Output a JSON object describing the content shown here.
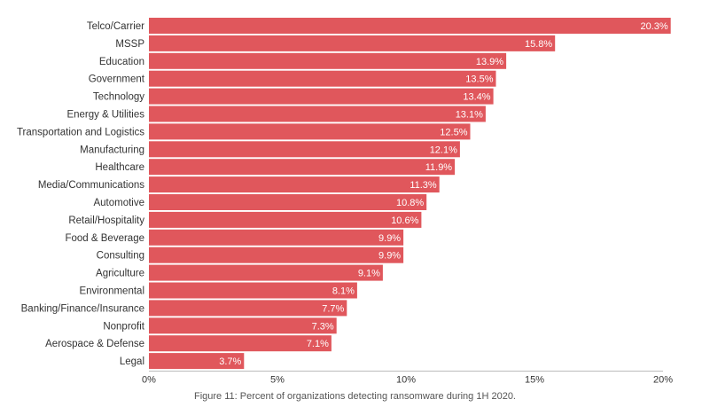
{
  "chart_data": {
    "type": "bar",
    "orientation": "horizontal",
    "categories": [
      "Telco/Carrier",
      "MSSP",
      "Education",
      "Government",
      "Technology",
      "Energy & Utilities",
      "Transportation and Logistics",
      "Manufacturing",
      "Healthcare",
      "Media/Communications",
      "Automotive",
      "Retail/Hospitality",
      "Food & Beverage",
      "Consulting",
      "Agriculture",
      "Environmental",
      "Banking/Finance/Insurance",
      "Nonprofit",
      "Aerospace & Defense",
      "Legal"
    ],
    "values": [
      20.3,
      15.8,
      13.9,
      13.5,
      13.4,
      13.1,
      12.5,
      12.1,
      11.9,
      11.3,
      10.8,
      10.6,
      9.9,
      9.9,
      9.1,
      8.1,
      7.7,
      7.3,
      7.1,
      3.7
    ],
    "data_labels": [
      "20.3%",
      "15.8%",
      "13.9%",
      "13.5%",
      "13.4%",
      "13.1%",
      "12.5%",
      "12.1%",
      "11.9%",
      "11.3%",
      "10.8%",
      "10.6%",
      "9.9%",
      "9.9%",
      "9.1%",
      "8.1%",
      "7.7%",
      "7.3%",
      "7.1%",
      "3.7%"
    ],
    "xlim": [
      0,
      20
    ],
    "x_ticks": [
      0,
      5,
      10,
      15,
      20
    ],
    "x_tick_labels": [
      "0%",
      "5%",
      "10%",
      "15%",
      "20%"
    ],
    "bar_color": "#e0575c",
    "grid": false,
    "legend": "none"
  },
  "caption": "Figure 11: Percent of organizations detecting ransomware during 1H 2020."
}
